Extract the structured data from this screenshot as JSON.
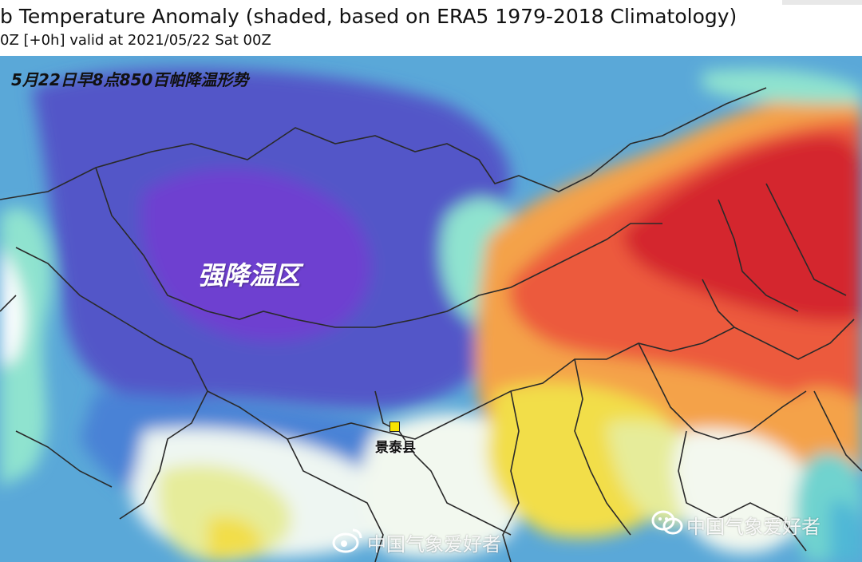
{
  "header": {
    "title": "b Temperature Anomaly (shaded, based on ERA5 1979-2018 Climatology)",
    "valid_line": "0Z [+0h] valid at 2021/05/22 Sat 00Z"
  },
  "map": {
    "annotation_title": "5月22日早8点850百帕降温形势",
    "region_label": "强降温区",
    "city_label": "景泰县",
    "colors": {
      "deep_cold": "#6e3fd0",
      "cold": "#5357c8",
      "cool": "#4a82d6",
      "mild_cool": "#4fb7d6",
      "neutral_cool": "#8fe3cf",
      "neutral": "#ffffff",
      "mild_warm": "#e6ec9a",
      "warm_yellow": "#f2de4a",
      "orange": "#f4a24a",
      "warm_red": "#ec5a3c",
      "hot_red": "#d4262e",
      "boundary": "#2a2a2a",
      "city_marker": "#f7e300"
    }
  },
  "watermarks": {
    "weibo_text": "中国气象爱好者",
    "wechat_text": "中国气象爱好者",
    "weibo_icon": "weibo-icon",
    "wechat_icon": "wechat-icon"
  }
}
